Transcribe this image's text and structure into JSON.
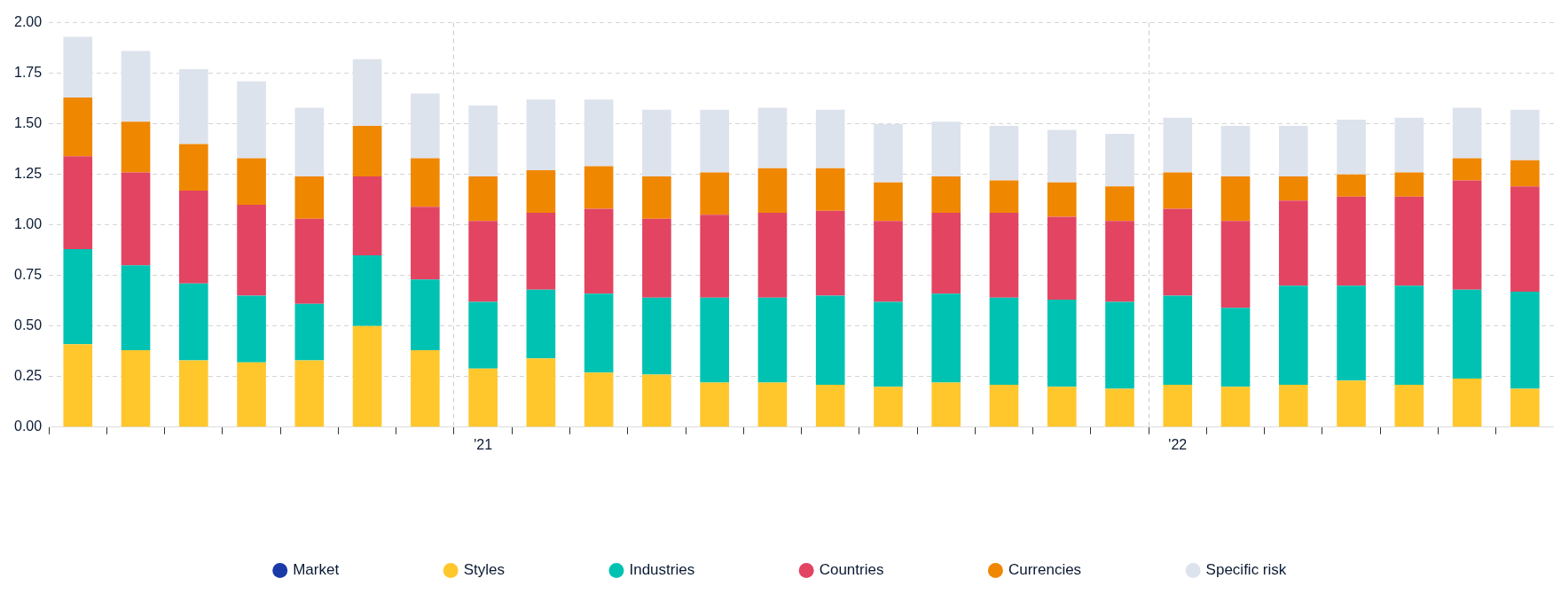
{
  "chart_data": {
    "type": "bar",
    "stacked": true,
    "categories": [
      null,
      null,
      null,
      null,
      null,
      null,
      null,
      "'21",
      null,
      null,
      null,
      null,
      null,
      null,
      null,
      null,
      null,
      null,
      null,
      "'22",
      null,
      null,
      null,
      null,
      null,
      null
    ],
    "series": [
      {
        "name": "Market",
        "color": "#1a3aa8",
        "values": [
          0,
          0,
          0,
          0,
          0,
          0,
          0,
          0,
          0,
          0,
          0,
          0,
          0,
          0,
          0,
          0,
          0,
          0,
          0,
          0,
          0,
          0,
          0,
          0,
          0,
          0
        ]
      },
      {
        "name": "Styles",
        "color": "#ffc72c",
        "values": [
          0.41,
          0.38,
          0.33,
          0.32,
          0.33,
          0.5,
          0.38,
          0.29,
          0.34,
          0.27,
          0.26,
          0.22,
          0.22,
          0.21,
          0.2,
          0.22,
          0.21,
          0.2,
          0.19,
          0.21,
          0.2,
          0.21,
          0.23,
          0.21,
          0.24,
          0.19
        ]
      },
      {
        "name": "Industries",
        "color": "#00c2b2",
        "values": [
          0.47,
          0.42,
          0.38,
          0.33,
          0.28,
          0.35,
          0.35,
          0.33,
          0.34,
          0.39,
          0.38,
          0.42,
          0.42,
          0.44,
          0.42,
          0.44,
          0.43,
          0.43,
          0.43,
          0.44,
          0.39,
          0.49,
          0.47,
          0.49,
          0.44,
          0.48
        ]
      },
      {
        "name": "Countries",
        "color": "#e24462",
        "values": [
          0.46,
          0.46,
          0.46,
          0.45,
          0.42,
          0.39,
          0.36,
          0.4,
          0.38,
          0.42,
          0.39,
          0.41,
          0.42,
          0.42,
          0.4,
          0.4,
          0.42,
          0.41,
          0.4,
          0.43,
          0.43,
          0.42,
          0.44,
          0.44,
          0.54,
          0.52
        ]
      },
      {
        "name": "Currencies",
        "color": "#f08700",
        "values": [
          0.29,
          0.25,
          0.23,
          0.23,
          0.21,
          0.25,
          0.24,
          0.22,
          0.21,
          0.21,
          0.21,
          0.21,
          0.22,
          0.21,
          0.19,
          0.18,
          0.16,
          0.17,
          0.17,
          0.18,
          0.22,
          0.12,
          0.11,
          0.12,
          0.11,
          0.13
        ]
      },
      {
        "name": "Specific risk",
        "color": "#dde3ed",
        "values": [
          0.3,
          0.35,
          0.37,
          0.38,
          0.34,
          0.33,
          0.32,
          0.35,
          0.35,
          0.33,
          0.33,
          0.31,
          0.3,
          0.29,
          0.29,
          0.27,
          0.27,
          0.26,
          0.26,
          0.27,
          0.25,
          0.25,
          0.27,
          0.27,
          0.25,
          0.25
        ]
      }
    ],
    "ylim": [
      0,
      2
    ],
    "yticks": [
      {
        "value": 0,
        "label": "0.00"
      },
      {
        "value": 0.25,
        "label": "0.25"
      },
      {
        "value": 0.5,
        "label": "0.50"
      },
      {
        "value": 0.75,
        "label": "0.75"
      },
      {
        "value": 1,
        "label": "1.00"
      },
      {
        "value": 1.25,
        "label": "1.25"
      },
      {
        "value": 1.5,
        "label": "1.50"
      },
      {
        "value": 1.75,
        "label": "1.75"
      },
      {
        "value": 2,
        "label": "2.00"
      }
    ],
    "grid": true,
    "legend": "bottom"
  }
}
